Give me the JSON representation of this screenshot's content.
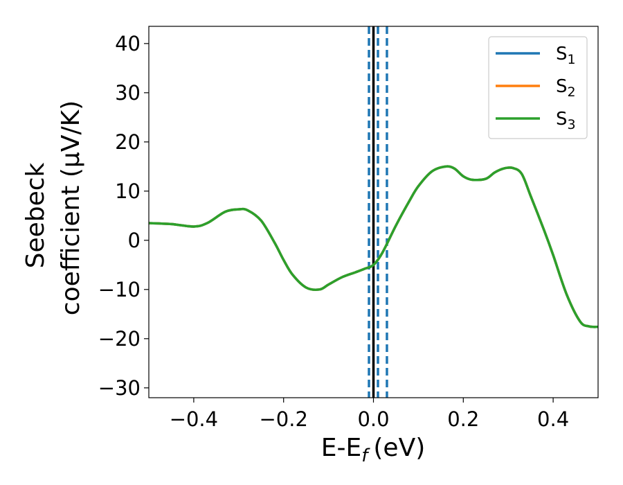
{
  "chart_data": {
    "type": "line",
    "xlabel": "E-E",
    "xlabel_sub": "f",
    "xlabel_unit": "(eV)",
    "ylabel_line1": "Seebeck",
    "ylabel_line2": "coefficient  (μV/K)",
    "xlim": [
      -0.5,
      0.5
    ],
    "ylim": [
      -32,
      43.5
    ],
    "xticks": [
      -0.4,
      -0.2,
      0.0,
      0.2,
      0.4
    ],
    "xtick_labels": [
      "−0.4",
      "−0.2",
      "0.0",
      "0.2",
      "0.4"
    ],
    "yticks": [
      -30,
      -20,
      -10,
      0,
      10,
      20,
      30,
      40
    ],
    "ytick_labels": [
      "−30",
      "−20",
      "−10",
      "0",
      "10",
      "20",
      "30",
      "40"
    ],
    "grid": false,
    "legend_position": "top-right",
    "series": [
      {
        "name": "S",
        "sub": "1",
        "color": "#1f77b4"
      },
      {
        "name": "S",
        "sub": "2",
        "color": "#ff7f0e"
      },
      {
        "name": "S",
        "sub": "3",
        "color": "#2ca02c"
      }
    ],
    "x": [
      -0.5,
      -0.45,
      -0.4,
      -0.37,
      -0.33,
      -0.3,
      -0.28,
      -0.25,
      -0.22,
      -0.2,
      -0.18,
      -0.15,
      -0.12,
      -0.1,
      -0.07,
      -0.04,
      -0.02,
      0.0,
      0.02,
      0.05,
      0.08,
      0.1,
      0.13,
      0.16,
      0.18,
      0.2,
      0.22,
      0.25,
      0.27,
      0.29,
      0.31,
      0.33,
      0.35,
      0.38,
      0.4,
      0.43,
      0.46,
      0.48,
      0.5
    ],
    "y": [
      3.5,
      3.3,
      2.8,
      3.5,
      5.8,
      6.3,
      6.1,
      4.0,
      -0.5,
      -4.0,
      -7.0,
      -9.6,
      -10.0,
      -9.0,
      -7.5,
      -6.5,
      -5.8,
      -5.0,
      -2.5,
      3.0,
      8.0,
      11.0,
      14.0,
      15.0,
      14.6,
      13.0,
      12.3,
      12.5,
      13.8,
      14.6,
      14.7,
      13.5,
      9.0,
      2.0,
      -3.0,
      -11.0,
      -16.5,
      -17.5,
      -17.6
    ],
    "vlines": [
      {
        "x": -0.01,
        "style": "dashed",
        "color": "#1f77b4"
      },
      {
        "x": 0.0,
        "style": "solid",
        "color": "#000000"
      },
      {
        "x": 0.01,
        "style": "dashed",
        "color": "#1f77b4"
      },
      {
        "x": 0.03,
        "style": "dashed",
        "color": "#1f77b4"
      }
    ]
  }
}
